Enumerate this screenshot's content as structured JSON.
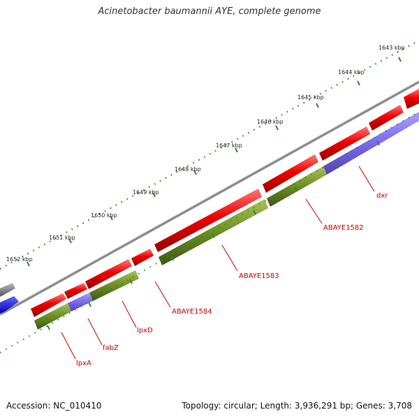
{
  "title": "Acinetobacter baumannii AYE, complete genome",
  "footer": {
    "accession": "Accession: NC_010410",
    "summary": "Topology: circular; Length: 3,936,291 bp; Genes: 3,708"
  },
  "colors": {
    "cds_forward": "#ee0000",
    "gene_track": "#6b8e23",
    "highlight_track": "#7b68ee",
    "backbone": "#8c8c8c",
    "tick": "#2e8b2e",
    "label": "#cc0000",
    "neighbor_gray": "#777777",
    "neighbor_blue": "#0000ee"
  },
  "ruler": {
    "labels": [
      "1643 kbp",
      "1644 kbp",
      "1645 kbp",
      "1646 kbp",
      "1647 kbp",
      "1648 kbp",
      "1649 kbp",
      "1650 kbp",
      "1651 kbp",
      "1652 kbp"
    ]
  },
  "genes": [
    "lpxA",
    "fabZ",
    "lpxD",
    "ABAYE1584",
    "ABAYE1583",
    "ABAYE1582",
    "dxr"
  ]
}
